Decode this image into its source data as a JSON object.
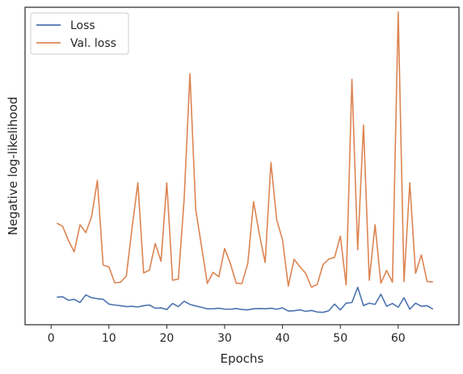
{
  "chart_data": {
    "type": "line",
    "title": "",
    "xlabel": "Epochs",
    "ylabel": "Negative log-likelihood",
    "xlim": [
      -4.5,
      70.5
    ],
    "ylim": [
      0,
      1
    ],
    "xticks": [
      0,
      10,
      20,
      30,
      40,
      50,
      60
    ],
    "x_tick_labels": [
      "0",
      "10",
      "20",
      "30",
      "40",
      "50",
      "60"
    ],
    "y_tick_labels_shown": false,
    "grid": false,
    "legend_position": "top-left",
    "x": [
      1,
      2,
      3,
      4,
      5,
      6,
      7,
      8,
      9,
      10,
      11,
      12,
      13,
      14,
      15,
      16,
      17,
      18,
      19,
      20,
      21,
      22,
      23,
      24,
      25,
      26,
      27,
      28,
      29,
      30,
      31,
      32,
      33,
      34,
      35,
      36,
      37,
      38,
      39,
      40,
      41,
      42,
      43,
      44,
      45,
      46,
      47,
      48,
      49,
      50,
      51,
      52,
      53,
      54,
      55,
      56,
      57,
      58,
      59,
      60,
      61,
      62,
      63,
      64,
      65,
      66
    ],
    "series": [
      {
        "name": "Loss",
        "color": "#4c72b0",
        "values": [
          0.087,
          0.088,
          0.077,
          0.08,
          0.07,
          0.094,
          0.085,
          0.082,
          0.08,
          0.065,
          0.062,
          0.06,
          0.057,
          0.058,
          0.056,
          0.06,
          0.062,
          0.052,
          0.053,
          0.048,
          0.067,
          0.057,
          0.074,
          0.064,
          0.059,
          0.055,
          0.05,
          0.05,
          0.052,
          0.049,
          0.049,
          0.051,
          0.048,
          0.047,
          0.05,
          0.051,
          0.05,
          0.052,
          0.049,
          0.053,
          0.043,
          0.044,
          0.047,
          0.042,
          0.045,
          0.04,
          0.039,
          0.044,
          0.065,
          0.047,
          0.068,
          0.07,
          0.118,
          0.06,
          0.068,
          0.064,
          0.096,
          0.058,
          0.067,
          0.055,
          0.085,
          0.049,
          0.068,
          0.058,
          0.06,
          0.049
        ]
      },
      {
        "name": "Val. loss",
        "color": "#dd8452",
        "values": [
          0.32,
          0.31,
          0.265,
          0.23,
          0.315,
          0.29,
          0.34,
          0.455,
          0.188,
          0.182,
          0.132,
          0.134,
          0.153,
          0.305,
          0.447,
          0.163,
          0.172,
          0.256,
          0.2,
          0.447,
          0.14,
          0.144,
          0.396,
          0.791,
          0.363,
          0.247,
          0.13,
          0.165,
          0.151,
          0.24,
          0.192,
          0.131,
          0.13,
          0.193,
          0.388,
          0.285,
          0.196,
          0.511,
          0.33,
          0.268,
          0.122,
          0.206,
          0.183,
          0.162,
          0.118,
          0.127,
          0.189,
          0.207,
          0.212,
          0.279,
          0.125,
          0.773,
          0.236,
          0.629,
          0.14,
          0.315,
          0.131,
          0.171,
          0.134,
          0.985,
          0.136,
          0.447,
          0.162,
          0.22,
          0.136,
          0.135
        ]
      }
    ]
  }
}
